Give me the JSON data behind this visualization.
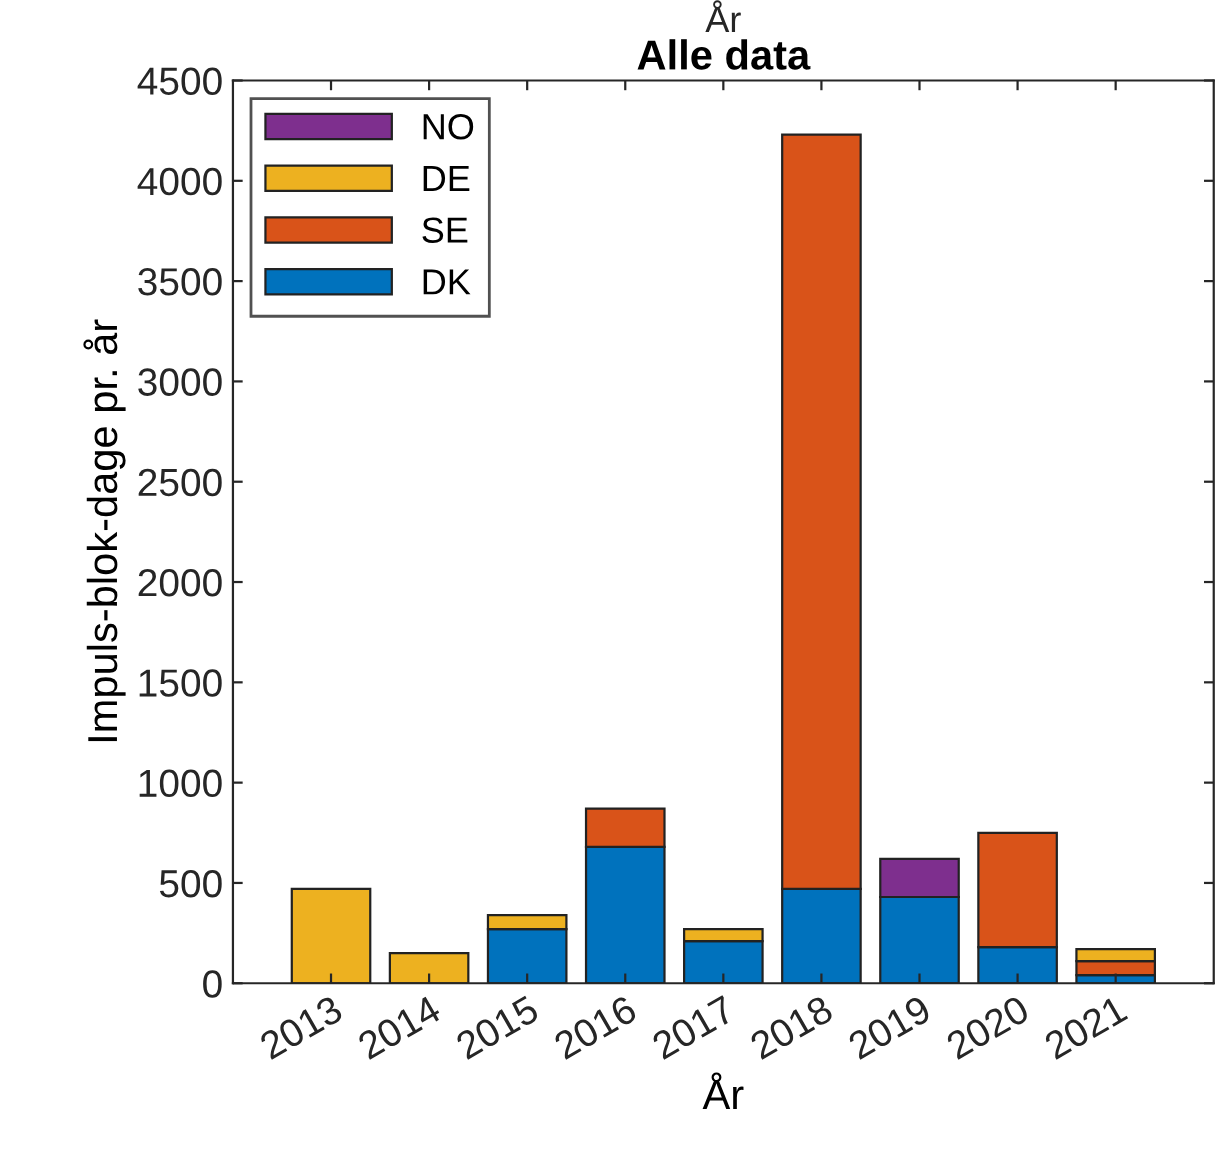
{
  "chart_data": {
    "type": "bar",
    "title": "Alle data",
    "xlabel": "År",
    "ylabel": "Impuls-blok-dage pr. år",
    "annotations": [
      "År"
    ],
    "categories": [
      "2013",
      "2014",
      "2015",
      "2016",
      "2017",
      "2018",
      "2019",
      "2020",
      "2021"
    ],
    "stacked": true,
    "series": [
      {
        "name": "DK",
        "color": "#0072bd",
        "values": [
          null,
          null,
          270,
          680,
          210,
          470,
          430,
          180,
          40
        ]
      },
      {
        "name": "SE",
        "color": "#d95319",
        "values": [
          null,
          null,
          null,
          190,
          null,
          3760,
          null,
          570,
          70
        ]
      },
      {
        "name": "DE",
        "color": "#edb120",
        "values": [
          470,
          150,
          70,
          null,
          60,
          null,
          null,
          null,
          60
        ]
      },
      {
        "name": "NO",
        "color": "#7e2f8e",
        "values": [
          null,
          null,
          null,
          null,
          null,
          null,
          190,
          null,
          null
        ]
      }
    ],
    "ylim": [
      0,
      4500
    ],
    "yticks": [
      0,
      500,
      1000,
      1500,
      2000,
      2500,
      3000,
      3500,
      4000,
      4500
    ],
    "grid": false,
    "legend": "top left"
  }
}
